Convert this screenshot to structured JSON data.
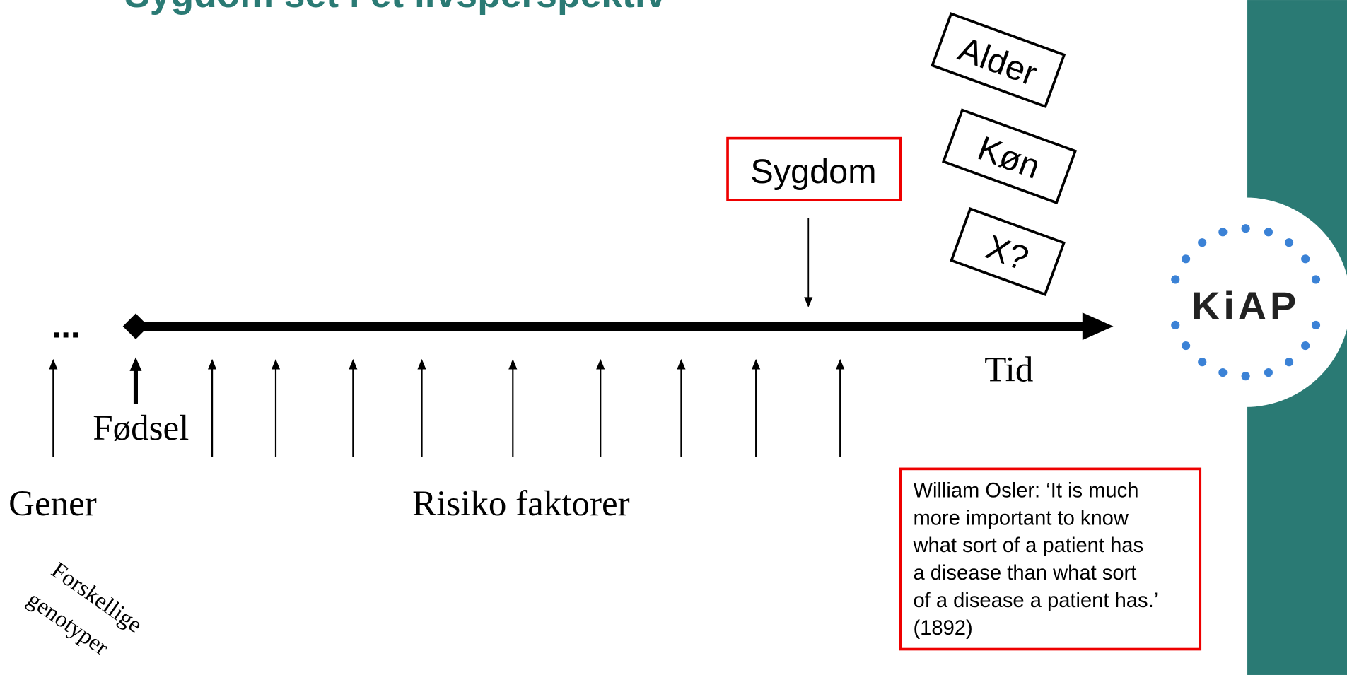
{
  "title": "Sygdom set i et livsperspektiv",
  "timeline": {
    "start_dots": "...",
    "birth": "Fødsel",
    "end": "Tid",
    "disease": "Sygdom",
    "genes": "Gener",
    "risk": "Risiko faktorer",
    "genotypes": [
      "Forskellige",
      "genotyper"
    ]
  },
  "tags": [
    "Alder",
    "Køn",
    "X?"
  ],
  "quote": [
    "William Osler: ‘It is much",
    "more important to know",
    "what sort of a patient has",
    "a disease than what sort",
    "of a disease a patient has.’",
    "(1892)"
  ],
  "logo": "KiAP"
}
